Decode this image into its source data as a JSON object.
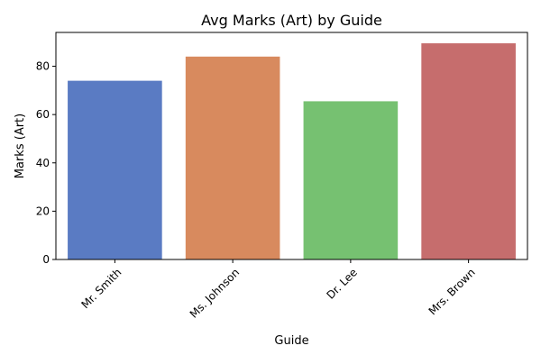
{
  "chart_data": {
    "type": "bar",
    "title": "Avg Marks (Art) by Guide",
    "xlabel": "Guide",
    "ylabel": "Marks (Art)",
    "categories": [
      "Mr. Smith",
      "Ms. Johnson",
      "Dr. Lee",
      "Mrs. Brown"
    ],
    "values": [
      74,
      84,
      65.5,
      89.5
    ],
    "colors": [
      "#5a7bc3",
      "#d88a5e",
      "#76c171",
      "#c66d6d"
    ],
    "ylim": [
      0,
      94
    ],
    "yticks": [
      0,
      20,
      40,
      60,
      80
    ],
    "grid": false,
    "legend": "none"
  }
}
